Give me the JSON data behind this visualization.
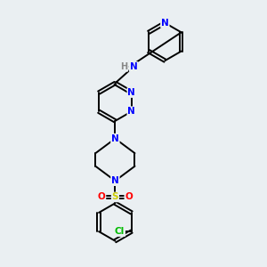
{
  "background_color": "#eaeff2",
  "bond_color": "#000000",
  "atom_colors": {
    "N": "#0000ff",
    "H": "#7a7a7a",
    "S": "#cccc00",
    "O": "#ff0000",
    "Cl": "#00bb00",
    "C": "#000000"
  },
  "figsize": [
    3.0,
    3.0
  ],
  "dpi": 100,
  "lw": 1.4,
  "fs": 7.5
}
